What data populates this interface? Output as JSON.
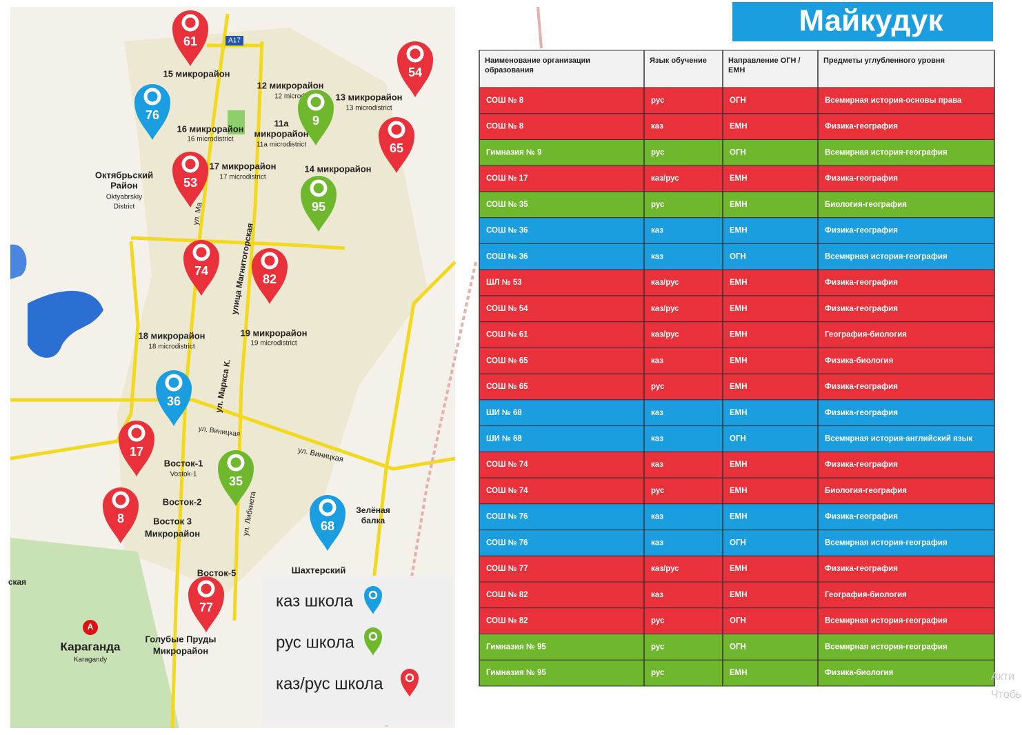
{
  "header": {
    "title": "Майкудук"
  },
  "map": {
    "labels": [
      "А17",
      "15 микрорайон",
      "12 микрорайон",
      "12 microdi",
      "13 микрорайон",
      "13 microdistrict",
      "16 микрорайон",
      "16 microdistrict",
      "11а",
      "микрорайон",
      "11a microdistrict",
      "17 микрорайон",
      "17 microdistrict",
      "14 микрорайон",
      "Октябрьский",
      "Район",
      "Oktyabrskiy",
      "District",
      "ул. Ма",
      "улица Магнитогорская",
      "18 микрорайон",
      "18 microdistrict",
      "19 микрорайон",
      "19 microdistrict",
      "ул. Маркса К.",
      "ул. Виницкая",
      "ул. Виницкая",
      "Восток-1",
      "Vostok-1",
      "Восток-2",
      "Восток 3",
      "Микрорайон",
      "ул. Либкнета",
      "Зелёная",
      "балка",
      "Шахтерский",
      "Восток-5",
      "Голубые Пруды",
      "Микрорайон",
      "Караганда",
      "Karagandy",
      "ская",
      "A"
    ],
    "pins": [
      {
        "label": "61",
        "color": "#e8313a"
      },
      {
        "label": "76",
        "color": "#1a9ee0"
      },
      {
        "label": "9",
        "color": "#6fb82e"
      },
      {
        "label": "54",
        "color": "#e8313a"
      },
      {
        "label": "65",
        "color": "#e8313a"
      },
      {
        "label": "53",
        "color": "#e8313a"
      },
      {
        "label": "95",
        "color": "#6fb82e"
      },
      {
        "label": "74",
        "color": "#e8313a"
      },
      {
        "label": "82",
        "color": "#e8313a"
      },
      {
        "label": "36",
        "color": "#1a9ee0"
      },
      {
        "label": "17",
        "color": "#e8313a"
      },
      {
        "label": "35",
        "color": "#6fb82e"
      },
      {
        "label": "8",
        "color": "#e8313a"
      },
      {
        "label": "68",
        "color": "#1a9ee0"
      },
      {
        "label": "77",
        "color": "#e8313a"
      }
    ]
  },
  "legend": [
    {
      "label": "каз школа",
      "color": "#1a9ee0"
    },
    {
      "label": "рус школа",
      "color": "#6fb82e"
    },
    {
      "label": "каз/рус школа",
      "color": "#e8313a"
    }
  ],
  "table": {
    "header": [
      "Наименование организации образования",
      "Язык обучение",
      "Направление ОГН /ЕМН",
      "Предметы углубленного уровня"
    ],
    "rows": [
      {
        "cells": [
          "СОШ № 8",
          "рус",
          "ОГН",
          "Всемирная история-основы права"
        ],
        "color": "#e8313a"
      },
      {
        "cells": [
          "СОШ № 8",
          "каз",
          "ЕМН",
          "Физика-география"
        ],
        "color": "#e8313a"
      },
      {
        "cells": [
          "Гимназия № 9",
          "рус",
          "ОГН",
          "Всемирная история-география"
        ],
        "color": "#6fb82e"
      },
      {
        "cells": [
          "СОШ № 17",
          "каз/рус",
          "ЕМН",
          "Физика-география"
        ],
        "color": "#e8313a"
      },
      {
        "cells": [
          "СОШ № 35",
          "рус",
          "ЕМН",
          "Биология-география"
        ],
        "color": "#6fb82e"
      },
      {
        "cells": [
          "СОШ № 36",
          "каз",
          "ЕМН",
          "Физика-география"
        ],
        "color": "#1a9ee0"
      },
      {
        "cells": [
          "СОШ № 36",
          "каз",
          "ОГН",
          "Всемирная история-география"
        ],
        "color": "#1a9ee0"
      },
      {
        "cells": [
          "ШЛ № 53",
          "каз/рус",
          "ЕМН",
          "Физика-география"
        ],
        "color": "#e8313a"
      },
      {
        "cells": [
          "СОШ № 54",
          "каз/рус",
          "ЕМН",
          "Физика-география"
        ],
        "color": "#e8313a"
      },
      {
        "cells": [
          "СОШ № 61",
          "каз/рус",
          "ЕМН",
          "География-биология"
        ],
        "color": "#e8313a"
      },
      {
        "cells": [
          "СОШ № 65",
          "каз",
          "ЕМН",
          "Физика-биология"
        ],
        "color": "#e8313a"
      },
      {
        "cells": [
          "СОШ № 65",
          "рус",
          "ЕМН",
          "Физика-география"
        ],
        "color": "#e8313a"
      },
      {
        "cells": [
          "ШИ № 68",
          "каз",
          "ЕМН",
          "Физика-география"
        ],
        "color": "#1a9ee0"
      },
      {
        "cells": [
          "ШИ № 68",
          "каз",
          "ОГН",
          "Всемирная история-английский язык"
        ],
        "color": "#1a9ee0"
      },
      {
        "cells": [
          "СОШ № 74",
          "каз",
          "ЕМН",
          "Физика-география"
        ],
        "color": "#e8313a"
      },
      {
        "cells": [
          "СОШ № 74",
          "рус",
          "ЕМН",
          "Биология-география"
        ],
        "color": "#e8313a"
      },
      {
        "cells": [
          "СОШ № 76",
          "каз",
          "ЕМН",
          "Физика-география"
        ],
        "color": "#1a9ee0"
      },
      {
        "cells": [
          "СОШ № 76",
          "каз",
          "ОГН",
          "Всемирная история-география"
        ],
        "color": "#1a9ee0"
      },
      {
        "cells": [
          "СОШ № 77",
          "каз/рус",
          "ЕМН",
          "Физика-география"
        ],
        "color": "#e8313a"
      },
      {
        "cells": [
          "СОШ № 82",
          "каз",
          "ЕМН",
          "География-биология"
        ],
        "color": "#e8313a"
      },
      {
        "cells": [
          "СОШ № 82",
          "рус",
          "ОГН",
          "Всемирная история-география"
        ],
        "color": "#e8313a"
      },
      {
        "cells": [
          "Гимназия № 95",
          "рус",
          "ОГН",
          "Всемирная история-география"
        ],
        "color": "#6fb82e"
      },
      {
        "cells": [
          "Гимназия № 95",
          "рус",
          "ЕМН",
          "Физика-биология"
        ],
        "color": "#6fb82e"
      }
    ]
  },
  "watermark": [
    "Акти",
    "Чтобы"
  ]
}
